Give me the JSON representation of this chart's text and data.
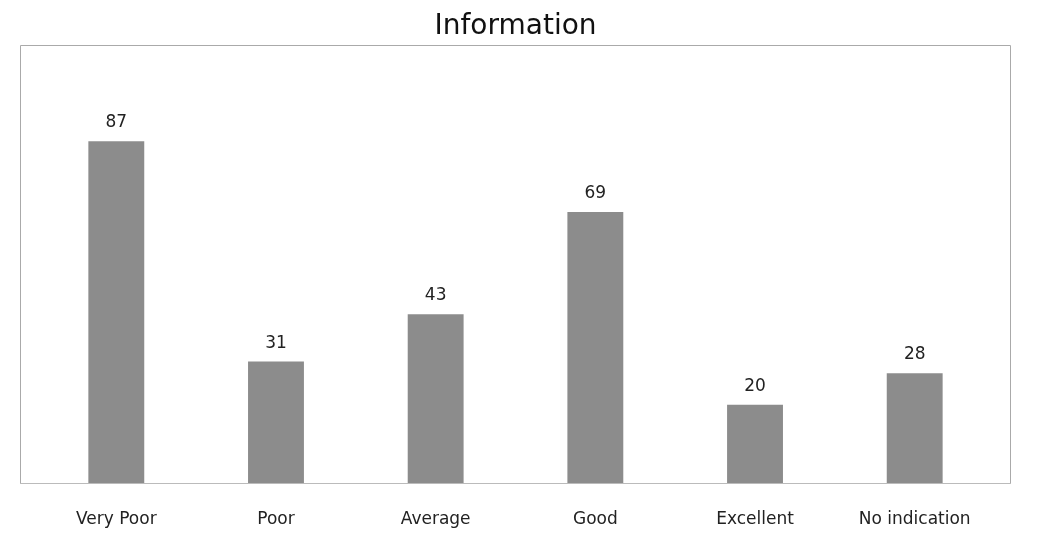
{
  "chart_data": {
    "type": "bar",
    "title": "Information",
    "categories": [
      "Very Poor",
      "Poor",
      "Average",
      "Good",
      "Excellent",
      "No indication"
    ],
    "values": [
      87,
      31,
      43,
      69,
      20,
      28
    ],
    "color": "#8c8c8c",
    "data_labels": true,
    "grid": false
  }
}
